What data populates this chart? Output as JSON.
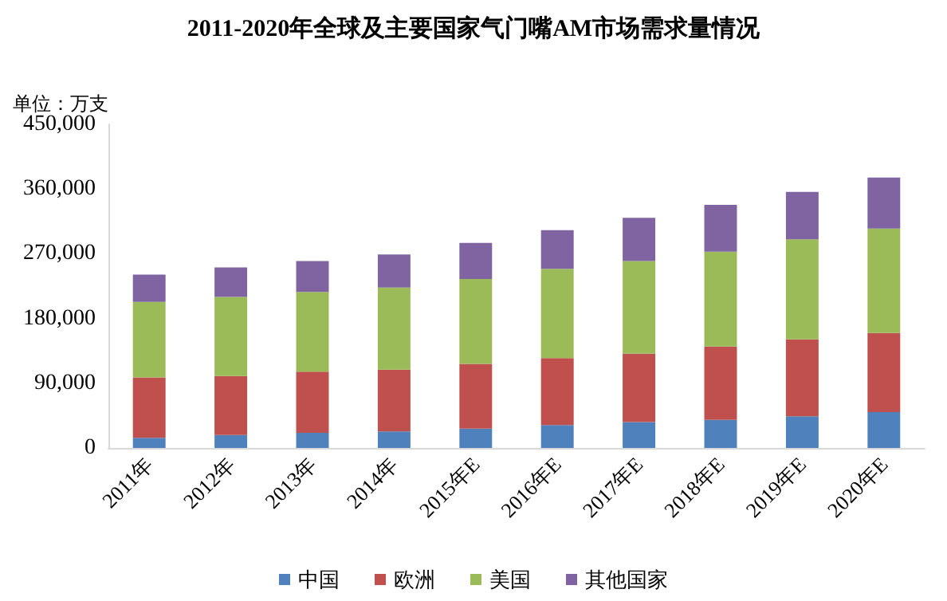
{
  "chart_data": {
    "type": "bar",
    "stacked": true,
    "title": "2011-2020年全球及主要国家气门嘴AM市场需求量情况",
    "ylabel": "单位：万支",
    "categories": [
      "2011年",
      "2012年",
      "2013年",
      "2014年",
      "2015年E",
      "2016年E",
      "2017年E",
      "2018年E",
      "2019年E",
      "2020年E"
    ],
    "series": [
      {
        "name": "中国",
        "color": "#4f81bd",
        "values": [
          14000,
          18000,
          21000,
          23000,
          27000,
          32000,
          36000,
          39000,
          44000,
          50000
        ]
      },
      {
        "name": "欧洲",
        "color": "#c0504d",
        "values": [
          84000,
          82000,
          85000,
          86000,
          90000,
          93000,
          95000,
          102000,
          107000,
          110000
        ]
      },
      {
        "name": "美国",
        "color": "#9bbb59",
        "values": [
          105000,
          110000,
          111000,
          114000,
          118000,
          124000,
          129000,
          132000,
          139000,
          145000
        ]
      },
      {
        "name": "其他国家",
        "color": "#8064a2",
        "values": [
          38000,
          41000,
          43000,
          46000,
          50000,
          54000,
          60000,
          65000,
          66000,
          71000
        ]
      }
    ],
    "ylim": [
      0,
      450000
    ],
    "yticks": [
      0,
      {
        "value": 90000,
        "label": "90,000"
      },
      {
        "value": 180000,
        "label": "180,000"
      },
      {
        "value": 270000,
        "label": "270,000"
      },
      {
        "value": 360000,
        "label": "360,000"
      },
      {
        "value": 450000,
        "label": "450,000"
      }
    ],
    "grid": false,
    "legend": "bottom"
  }
}
